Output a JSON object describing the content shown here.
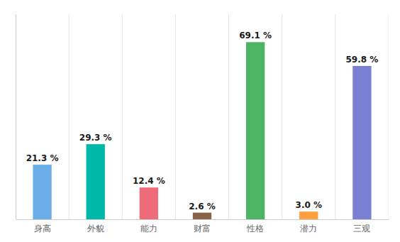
{
  "chart_data": {
    "type": "bar",
    "categories": [
      "身高",
      "外貌",
      "能力",
      "财富",
      "性格",
      "潜力",
      "三观"
    ],
    "values": [
      21.3,
      29.3,
      12.4,
      2.6,
      69.1,
      3.0,
      59.8
    ],
    "value_labels": [
      "21.3 %",
      "29.3 %",
      "12.4 %",
      "2.6 %",
      "69.1 %",
      "3.0 %",
      "59.8 %"
    ],
    "colors": [
      "#6AAEE8",
      "#00B8A9",
      "#F06B7A",
      "#8B6347",
      "#4CB563",
      "#FFA040",
      "#7B7FD4"
    ],
    "ylim": [
      0,
      80
    ],
    "data_labels": true,
    "tick_labels": "x"
  }
}
